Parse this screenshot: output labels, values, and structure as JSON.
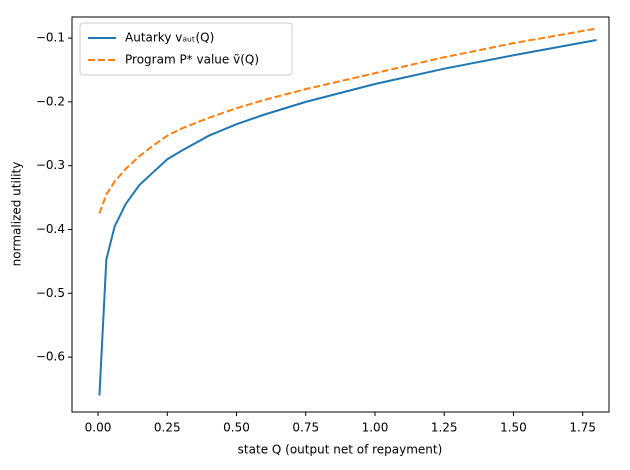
{
  "chart_data": {
    "type": "line",
    "xlabel": "state Q (output net of repayment)",
    "ylabel": "normalized utility",
    "x": [
      0.005,
      0.03,
      0.06,
      0.1,
      0.15,
      0.2,
      0.25,
      0.3,
      0.4,
      0.5,
      0.6,
      0.75,
      1.0,
      1.25,
      1.5,
      1.8
    ],
    "series": [
      {
        "name": "Autarky  vₐᵤₜ(Q)",
        "color": "#1f77b4",
        "dash": "solid",
        "values": [
          -0.66,
          -0.447,
          -0.395,
          -0.36,
          -0.33,
          -0.31,
          -0.29,
          -0.277,
          -0.253,
          -0.235,
          -0.22,
          -0.2,
          -0.172,
          -0.148,
          -0.127,
          -0.103
        ]
      },
      {
        "name": "Program P* value  ṽ(Q)",
        "color": "#ff7f0e",
        "dash": "dashed",
        "values": [
          -0.375,
          -0.345,
          -0.325,
          -0.305,
          -0.285,
          -0.268,
          -0.253,
          -0.242,
          -0.225,
          -0.21,
          -0.197,
          -0.18,
          -0.155,
          -0.13,
          -0.108,
          -0.085
        ]
      }
    ],
    "xlim": [
      -0.094,
      1.845
    ],
    "ylim": [
      -0.686,
      -0.067
    ],
    "xticks": [
      {
        "value": 0,
        "label": "0.00"
      },
      {
        "value": 0.25,
        "label": "0.25"
      },
      {
        "value": 0.5,
        "label": "0.50"
      },
      {
        "value": 0.75,
        "label": "0.75"
      },
      {
        "value": 1,
        "label": "1.00"
      },
      {
        "value": 1.25,
        "label": "1.25"
      },
      {
        "value": 1.5,
        "label": "1.50"
      },
      {
        "value": 1.75,
        "label": "1.75"
      }
    ],
    "yticks": [
      {
        "value": -0.6,
        "label": "−0.6"
      },
      {
        "value": -0.5,
        "label": "−0.5"
      },
      {
        "value": -0.4,
        "label": "−0.4"
      },
      {
        "value": -0.3,
        "label": "−0.3"
      },
      {
        "value": -0.2,
        "label": "−0.2"
      },
      {
        "value": -0.1,
        "label": "−0.1"
      }
    ],
    "legend": "upper-left",
    "grid": false
  }
}
